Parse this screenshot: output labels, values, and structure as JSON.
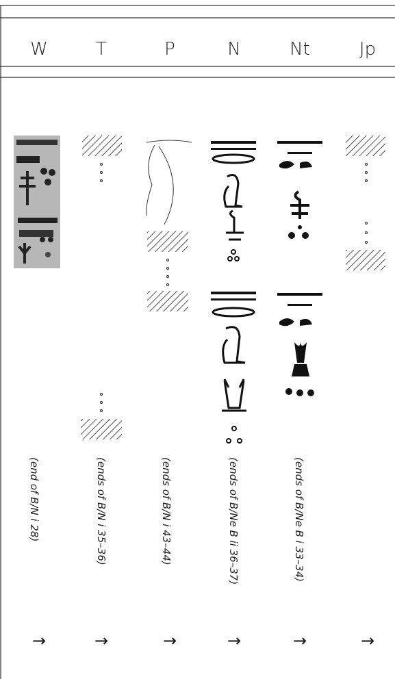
{
  "columns": [
    {
      "label": "W",
      "note": "(end of B/N i 28)",
      "arrow": "→"
    },
    {
      "label": "T",
      "note": "(ends of B/N i 35–36)",
      "arrow": "→"
    },
    {
      "label": "P",
      "note": "(ends of B/N i 43–44)",
      "arrow": "→"
    },
    {
      "label": "N",
      "note": "(ends of B/Ne B ii 36–37)",
      "arrow": "→"
    },
    {
      "label": "Nt",
      "note": "(ends of B/Ne B i 33–34)",
      "arrow": "→"
    },
    {
      "label": "Jp",
      "arrow": "→"
    }
  ]
}
